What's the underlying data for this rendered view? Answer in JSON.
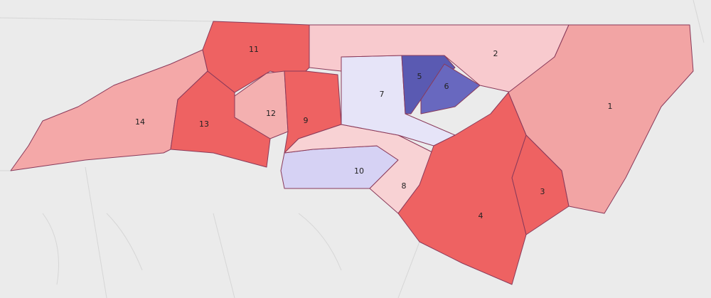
{
  "districts": [
    {
      "label": "1"
    },
    {
      "label": "2"
    },
    {
      "label": "3"
    },
    {
      "label": "4"
    },
    {
      "label": "5"
    },
    {
      "label": "6"
    },
    {
      "label": "7"
    },
    {
      "label": "8"
    },
    {
      "label": "9"
    },
    {
      "label": "10"
    },
    {
      "label": "11"
    },
    {
      "label": "12"
    },
    {
      "label": "13"
    },
    {
      "label": "14"
    }
  ]
}
